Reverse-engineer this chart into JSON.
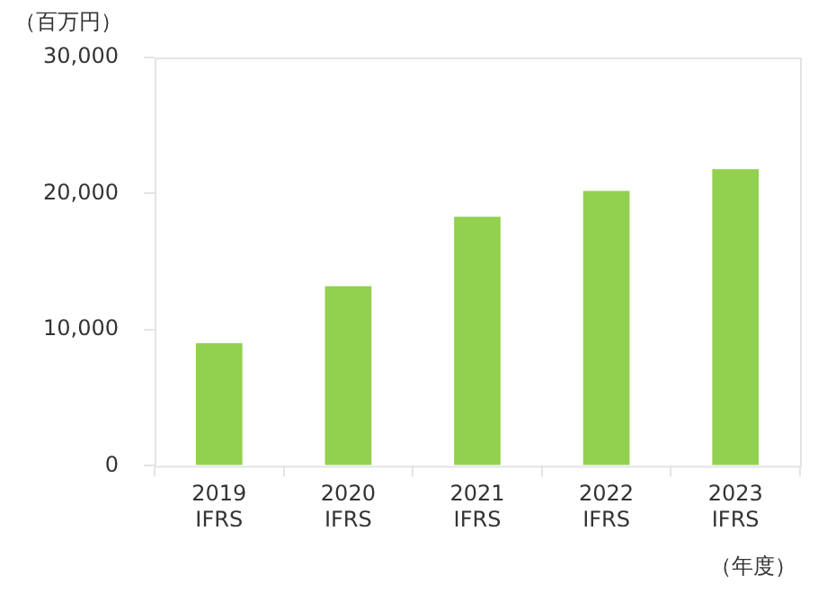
{
  "chart_data": {
    "type": "bar",
    "ylabel": "（百万円）",
    "xlabel": "（年度）",
    "categories": [
      "2019\nIFRS",
      "2020\nIFRS",
      "2021\nIFRS",
      "2022\nIFRS",
      "2023\nIFRS"
    ],
    "values": [
      9000,
      13200,
      18300,
      20200,
      21800
    ],
    "color": "#92d050",
    "ylim": [
      0,
      30000
    ],
    "yticks": [
      0,
      {
        "value": 10000,
        "label": "10,000"
      },
      {
        "value": 20000,
        "label": "20,000"
      },
      {
        "value": 30000,
        "label": "30,000"
      }
    ],
    "grid": false,
    "legend": false
  }
}
